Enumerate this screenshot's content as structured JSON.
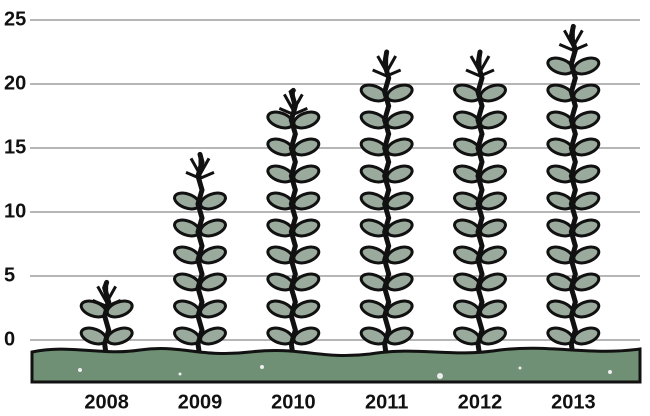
{
  "chart_data": {
    "type": "pictorial-bar",
    "categories": [
      "2008",
      "2009",
      "2010",
      "2011",
      "2012",
      "2013"
    ],
    "values": [
      4.5,
      14.5,
      19.5,
      22.5,
      22.5,
      24.5
    ],
    "color": "#9aab9e",
    "ylim": [
      0,
      25
    ],
    "yticks": [
      0,
      5,
      10,
      15,
      20,
      25
    ],
    "grid": true
  }
}
